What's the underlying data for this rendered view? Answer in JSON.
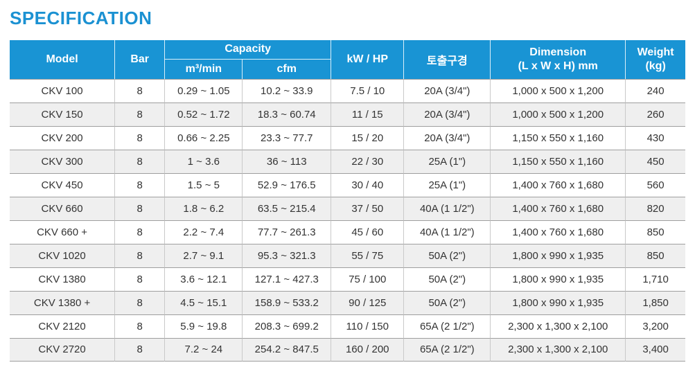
{
  "page_title": "SPECIFICATION",
  "colors": {
    "title": "#1b91d2",
    "header_bg": "#1994d4",
    "header_text": "#ffffff",
    "row_stripe": "#efefef",
    "cell_text": "#333333"
  },
  "table": {
    "headers": {
      "model": "Model",
      "bar": "Bar",
      "capacity_group": "Capacity",
      "capacity_m3min": "m³/min",
      "capacity_cfm": "cfm",
      "kw_hp": "kW / HP",
      "discharge_port": "토출구경",
      "dimension_line1": "Dimension",
      "dimension_line2": "(L x W x H) mm",
      "weight_line1": "Weight",
      "weight_line2": "(kg)"
    },
    "rows": [
      {
        "model": "CKV 100",
        "bar": "8",
        "m3min": "0.29 ~ 1.05",
        "cfm": "10.2 ~ 33.9",
        "kw_hp": "7.5 / 10",
        "discharge": "20A (3/4\")",
        "dimension": "1,000 x 500 x 1,200",
        "weight": "240"
      },
      {
        "model": "CKV 150",
        "bar": "8",
        "m3min": "0.52 ~ 1.72",
        "cfm": "18.3 ~ 60.74",
        "kw_hp": "11 / 15",
        "discharge": "20A (3/4\")",
        "dimension": "1,000 x 500 x 1,200",
        "weight": "260"
      },
      {
        "model": "CKV 200",
        "bar": "8",
        "m3min": "0.66 ~ 2.25",
        "cfm": "23.3 ~ 77.7",
        "kw_hp": "15 / 20",
        "discharge": "20A (3/4\")",
        "dimension": "1,150 x 550 x 1,160",
        "weight": "430"
      },
      {
        "model": "CKV 300",
        "bar": "8",
        "m3min": "1 ~ 3.6",
        "cfm": "36 ~ 113",
        "kw_hp": "22 / 30",
        "discharge": "25A (1\")",
        "dimension": "1,150 x 550 x 1,160",
        "weight": "450"
      },
      {
        "model": "CKV 450",
        "bar": "8",
        "m3min": "1.5 ~ 5",
        "cfm": "52.9 ~ 176.5",
        "kw_hp": "30 / 40",
        "discharge": "25A (1\")",
        "dimension": "1,400 x 760 x 1,680",
        "weight": "560"
      },
      {
        "model": "CKV 660",
        "bar": "8",
        "m3min": "1.8 ~ 6.2",
        "cfm": "63.5 ~ 215.4",
        "kw_hp": "37 / 50",
        "discharge": "40A (1 1/2\")",
        "dimension": "1,400 x 760 x 1,680",
        "weight": "820"
      },
      {
        "model": "CKV 660 +",
        "bar": "8",
        "m3min": "2.2 ~ 7.4",
        "cfm": "77.7 ~ 261.3",
        "kw_hp": "45 / 60",
        "discharge": "40A (1 1/2\")",
        "dimension": "1,400 x 760 x 1,680",
        "weight": "850"
      },
      {
        "model": "CKV 1020",
        "bar": "8",
        "m3min": "2.7 ~ 9.1",
        "cfm": "95.3 ~ 321.3",
        "kw_hp": "55 / 75",
        "discharge": "50A (2\")",
        "dimension": "1,800 x 990 x 1,935",
        "weight": "850"
      },
      {
        "model": "CKV 1380",
        "bar": "8",
        "m3min": "3.6 ~ 12.1",
        "cfm": "127.1 ~ 427.3",
        "kw_hp": "75 / 100",
        "discharge": "50A (2\")",
        "dimension": "1,800 x 990 x 1,935",
        "weight": "1,710"
      },
      {
        "model": "CKV 1380 +",
        "bar": "8",
        "m3min": "4.5 ~ 15.1",
        "cfm": "158.9 ~ 533.2",
        "kw_hp": "90 / 125",
        "discharge": "50A (2\")",
        "dimension": "1,800 x 990 x 1,935",
        "weight": "1,850"
      },
      {
        "model": "CKV 2120",
        "bar": "8",
        "m3min": "5.9 ~ 19.8",
        "cfm": "208.3 ~ 699.2",
        "kw_hp": "110 / 150",
        "discharge": "65A (2 1/2\")",
        "dimension": "2,300 x 1,300 x 2,100",
        "weight": "3,200"
      },
      {
        "model": "CKV 2720",
        "bar": "8",
        "m3min": "7.2 ~ 24",
        "cfm": "254.2 ~ 847.5",
        "kw_hp": "160 / 200",
        "discharge": "65A (2 1/2\")",
        "dimension": "2,300 x 1,300 x 2,100",
        "weight": "3,400"
      }
    ]
  }
}
